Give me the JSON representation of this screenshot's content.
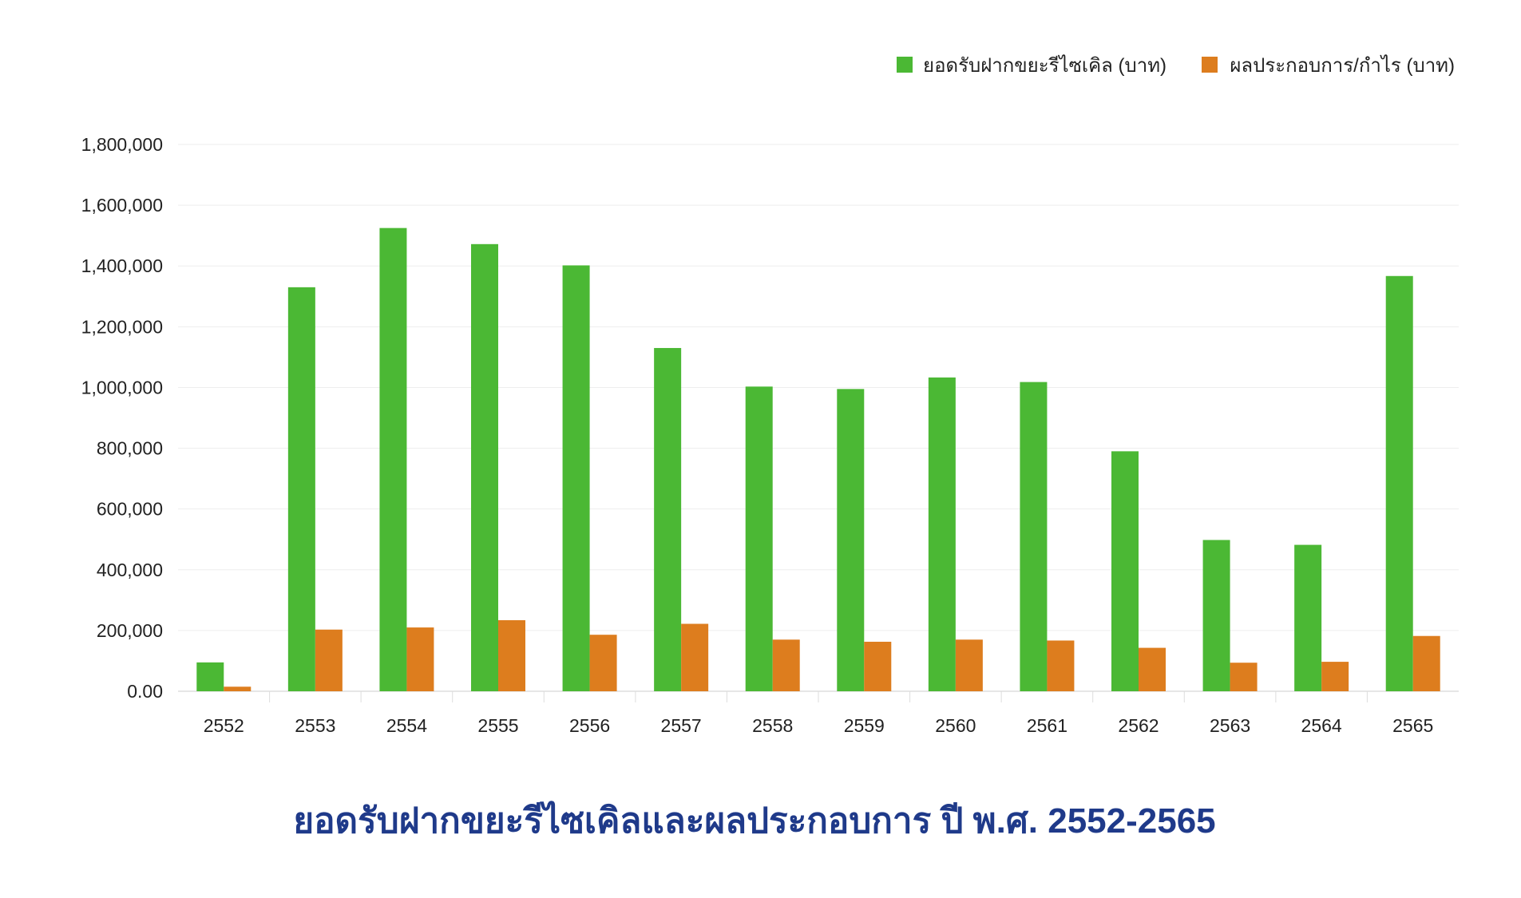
{
  "colors": {
    "deposits": "#4bb834",
    "profit": "#dd7d1e",
    "grid": "#eeeeee",
    "axis": "#dddddd",
    "title": "#1f3a8a"
  },
  "chart_data": {
    "type": "bar",
    "title": "ยอดรับฝากขยะรีไซเคิลและผลประกอบการ ปี พ.ศ. 2552-2565",
    "xlabel": "",
    "ylabel": "",
    "categories": [
      "2552",
      "2553",
      "2554",
      "2555",
      "2556",
      "2557",
      "2558",
      "2559",
      "2560",
      "2561",
      "2562",
      "2563",
      "2564",
      "2565"
    ],
    "series": [
      {
        "name": "ยอดรับฝากขยะรีไซเคิล (บาท)",
        "color": "#4bb834",
        "values": [
          95000,
          1330000,
          1525000,
          1472000,
          1402000,
          1130000,
          1003000,
          995000,
          1033000,
          1018000,
          790000,
          498000,
          482000,
          1367000
        ]
      },
      {
        "name": "ผลประกอบการ/กำไร (บาท)",
        "color": "#dd7d1e",
        "values": [
          15000,
          203000,
          210000,
          234000,
          186000,
          222000,
          170000,
          163000,
          170000,
          167000,
          143000,
          94000,
          97000,
          182000
        ]
      }
    ],
    "ylim": [
      0,
      1800000
    ],
    "yticks": [
      0,
      200000,
      400000,
      600000,
      800000,
      1000000,
      1200000,
      1400000,
      1600000,
      1800000
    ],
    "ytick_labels": [
      "0.00",
      "200,000",
      "400,000",
      "600,000",
      "800,000",
      "1,000,000",
      "1,200,000",
      "1,400,000",
      "1,600,000",
      "1,800,000"
    ],
    "grid": true,
    "legend_position": "top-right"
  }
}
